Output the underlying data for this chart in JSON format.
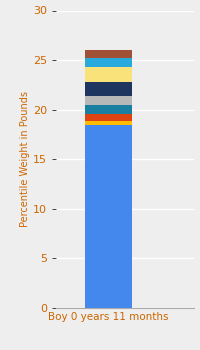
{
  "xlabel": "Boy 0 years 11 months",
  "ylabel": "Percentile Weight in Pounds",
  "ylim": [
    0,
    30
  ],
  "yticks": [
    0,
    5,
    10,
    15,
    20,
    25,
    30
  ],
  "segments": [
    {
      "value": 18.5,
      "color": "#4488ee"
    },
    {
      "value": 0.4,
      "color": "#ffbb00"
    },
    {
      "value": 0.7,
      "color": "#dd4411"
    },
    {
      "value": 0.9,
      "color": "#1a7fa0"
    },
    {
      "value": 0.9,
      "color": "#b8b8b8"
    },
    {
      "value": 1.4,
      "color": "#1e3560"
    },
    {
      "value": 1.5,
      "color": "#f9e27a"
    },
    {
      "value": 0.9,
      "color": "#29aadd"
    },
    {
      "value": 0.8,
      "color": "#a05035"
    }
  ],
  "background_color": "#eeeeee",
  "bar_width": 0.5,
  "xlabel_fontsize": 7.5,
  "ylabel_fontsize": 7,
  "tick_fontsize": 8,
  "xlabel_color": "#cc6600",
  "ylabel_color": "#cc6600",
  "tick_color": "#cc6600",
  "grid_color": "#ffffff",
  "figsize": [
    2.0,
    3.5
  ],
  "dpi": 100
}
